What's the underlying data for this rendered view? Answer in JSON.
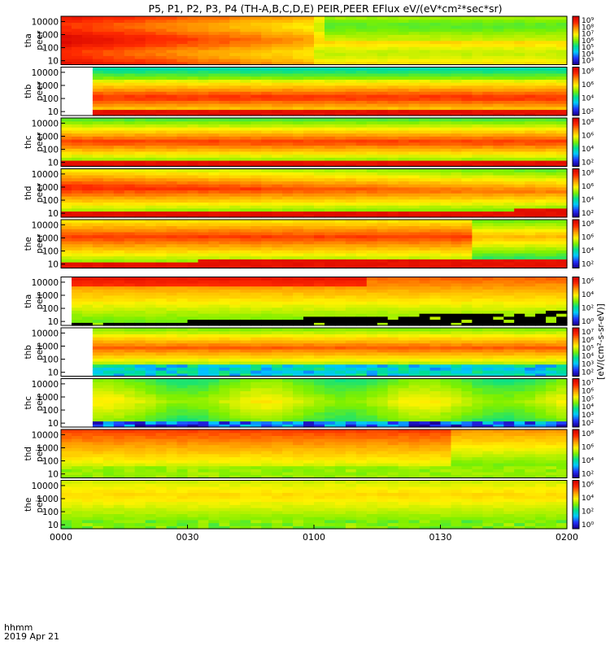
{
  "title": "P5, P1, P2, P3, P4 (TH-A,B,C,D,E) PEIR,PEER EFlux eV/(eV*cm²*sec*sr)",
  "time_label_line1": "hhmm",
  "time_label_line2": "2019 Apr 21",
  "chart_data": {
    "type": "heatmap",
    "x_ticks": [
      "0000",
      "0030",
      "0100",
      "0130",
      "0200"
    ],
    "x_range_minutes": [
      0,
      120
    ],
    "y_scale": "log",
    "y_ticks": [
      "10",
      "100",
      "1000",
      "10000"
    ],
    "y_range": [
      5,
      25000
    ],
    "colorbar_unit": "[eV/(cm²-s-sr-eV)]",
    "panels": [
      {
        "label_line1": "tha",
        "label_line2": "peer",
        "cb_ticks": [
          "10⁹",
          "10⁸",
          "10⁷",
          "10⁶",
          "10⁵",
          "10⁴",
          "10³"
        ],
        "profile": "tha_peer"
      },
      {
        "label_line1": "thb",
        "label_line2": "peer",
        "cb_ticks": [
          "10⁸",
          "10⁶",
          "10⁴",
          "10²"
        ],
        "profile": "thb_peer"
      },
      {
        "label_line1": "thc",
        "label_line2": "peer",
        "cb_ticks": [
          "10⁸",
          "10⁶",
          "10⁴",
          "10²"
        ],
        "profile": "thc_peer"
      },
      {
        "label_line1": "thd",
        "label_line2": "peer",
        "cb_ticks": [
          "10⁸",
          "10⁶",
          "10⁴",
          "10²"
        ],
        "profile": "thd_peer"
      },
      {
        "label_line1": "the",
        "label_line2": "peer",
        "cb_ticks": [
          "10⁸",
          "10⁶",
          "10⁴",
          "10²"
        ],
        "profile": "the_peer"
      },
      {
        "label_line1": "tha",
        "label_line2": "peir",
        "cb_ticks": [
          "10⁶",
          "10⁴",
          "10²",
          "10⁰"
        ],
        "profile": "tha_peir"
      },
      {
        "label_line1": "thb",
        "label_line2": "peir",
        "cb_ticks": [
          "10⁷",
          "10⁶",
          "10⁵",
          "10⁴",
          "10³",
          "10²"
        ],
        "profile": "thb_peir"
      },
      {
        "label_line1": "thc",
        "label_line2": "peir",
        "cb_ticks": [
          "10⁷",
          "10⁶",
          "10⁵",
          "10⁴",
          "10³",
          "10²"
        ],
        "profile": "thc_peir"
      },
      {
        "label_line1": "thd",
        "label_line2": "peir",
        "cb_ticks": [
          "10⁸",
          "10⁶",
          "10⁴",
          "10²"
        ],
        "profile": "thd_peir"
      },
      {
        "label_line1": "the",
        "label_line2": "peir",
        "cb_ticks": [
          "10⁶",
          "10⁴",
          "10²",
          "10⁰"
        ],
        "profile": "the_peir"
      }
    ]
  },
  "colors": {
    "frame": "#000000",
    "colormap": [
      "#1a0099",
      "#2233ff",
      "#00c8ff",
      "#00e090",
      "#7cf000",
      "#fff200",
      "#ff9a00",
      "#ff2a00",
      "#d40000"
    ]
  }
}
